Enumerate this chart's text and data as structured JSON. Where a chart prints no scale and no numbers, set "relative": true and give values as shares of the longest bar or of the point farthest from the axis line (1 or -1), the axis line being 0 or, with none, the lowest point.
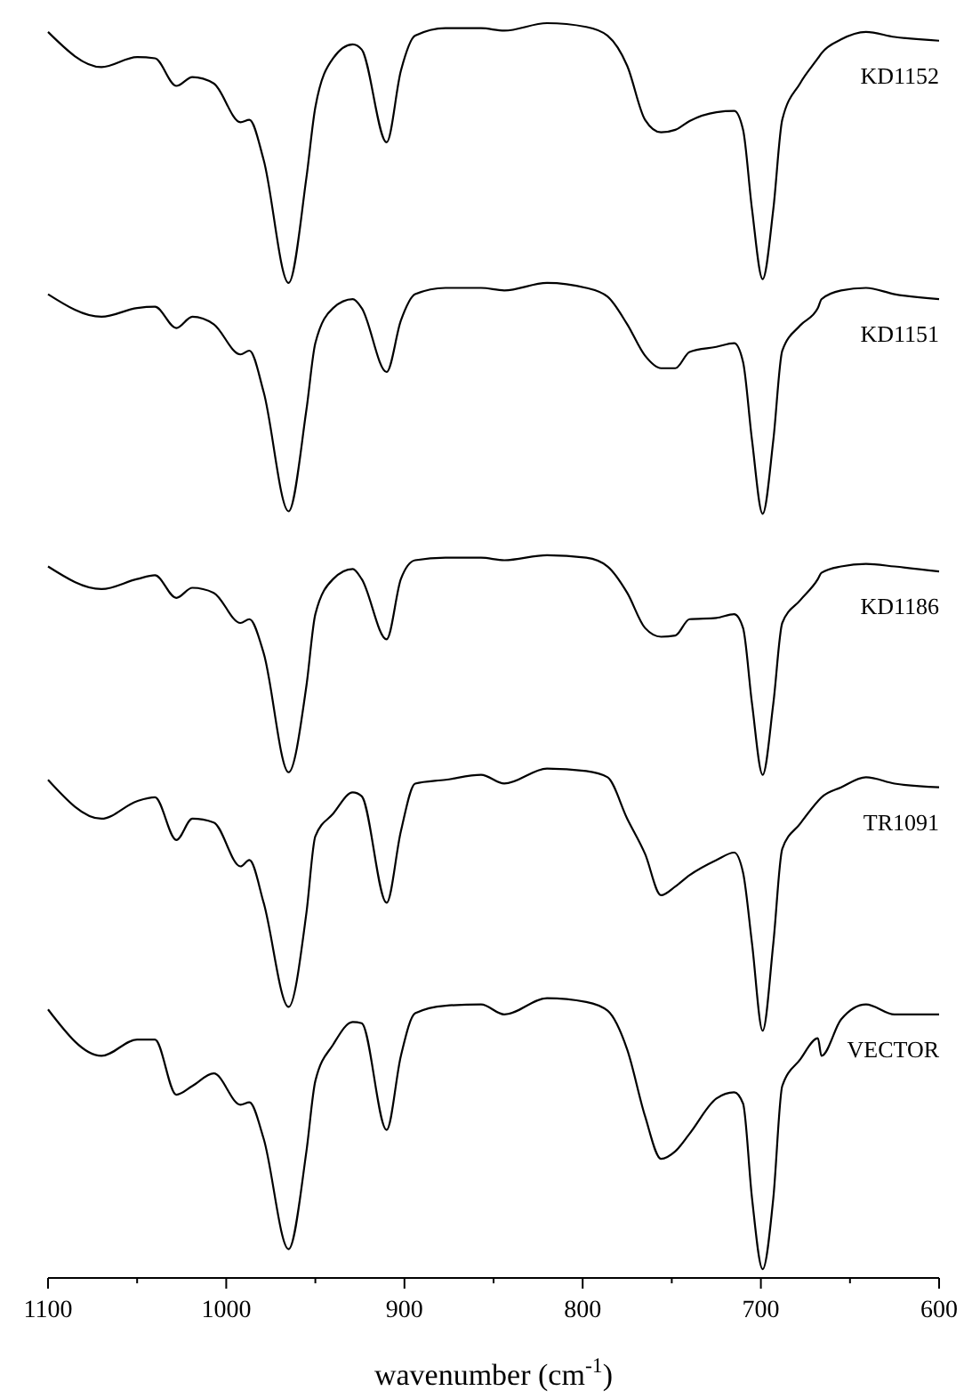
{
  "chart_data": {
    "type": "line",
    "relative": true,
    "xlabel": "wavenumber (cm$^{-1}$)",
    "xlim": [
      1100,
      600
    ],
    "xticks": [
      1100,
      {
        "value": 1050,
        "label": null
      },
      1000,
      {
        "value": 950,
        "label": null
      },
      900,
      {
        "value": 850,
        "label": null
      },
      800,
      {
        "value": 750,
        "label": null
      },
      700,
      {
        "value": 650,
        "label": null
      },
      600
    ],
    "x": [
      1100,
      1070,
      1050,
      1040,
      1028,
      1019,
      1007,
      992,
      987,
      979,
      965,
      955,
      950,
      940,
      929,
      924,
      910,
      902,
      894,
      877,
      857,
      844,
      820,
      798,
      786,
      775,
      765,
      756,
      748,
      740,
      725,
      715,
      710,
      705,
      699,
      693,
      688,
      678,
      668,
      666,
      655,
      641,
      625,
      600
    ],
    "series": [
      {
        "name": "KD1152",
        "color": "#000000",
        "values": [
          0.993,
          0.965,
          0.973,
          0.972,
          0.95,
          0.957,
          0.952,
          0.921,
          0.923,
          0.891,
          0.793,
          0.877,
          0.933,
          0.972,
          0.983,
          0.979,
          0.905,
          0.962,
          0.99,
          0.996,
          0.996,
          0.994,
          1.0,
          0.997,
          0.99,
          0.966,
          0.923,
          0.913,
          0.915,
          0.922,
          0.929,
          0.93,
          0.915,
          0.852,
          0.796,
          0.852,
          0.923,
          0.952,
          0.972,
          0.976,
          0.987,
          0.993,
          0.989,
          0.986
        ]
      },
      {
        "name": "KD1151",
        "color": "#000000",
        "values": [
          0.784,
          0.766,
          0.773,
          0.774,
          0.757,
          0.766,
          0.76,
          0.736,
          0.739,
          0.706,
          0.611,
          0.692,
          0.745,
          0.773,
          0.78,
          0.773,
          0.722,
          0.763,
          0.784,
          0.789,
          0.789,
          0.787,
          0.793,
          0.789,
          0.782,
          0.76,
          0.735,
          0.725,
          0.725,
          0.738,
          0.742,
          0.745,
          0.73,
          0.668,
          0.609,
          0.668,
          0.739,
          0.759,
          0.773,
          0.78,
          0.787,
          0.789,
          0.784,
          0.78
        ]
      },
      {
        "name": "KD1186",
        "color": "#000000",
        "values": [
          0.567,
          0.549,
          0.557,
          0.56,
          0.542,
          0.55,
          0.546,
          0.522,
          0.525,
          0.498,
          0.403,
          0.472,
          0.529,
          0.557,
          0.565,
          0.557,
          0.509,
          0.557,
          0.572,
          0.574,
          0.574,
          0.572,
          0.576,
          0.574,
          0.567,
          0.546,
          0.518,
          0.511,
          0.512,
          0.525,
          0.526,
          0.529,
          0.518,
          0.458,
          0.401,
          0.458,
          0.522,
          0.54,
          0.557,
          0.562,
          0.567,
          0.569,
          0.567,
          0.563
        ]
      },
      {
        "name": "TR1091",
        "color": "#000000",
        "values": [
          0.397,
          0.366,
          0.38,
          0.383,
          0.349,
          0.366,
          0.363,
          0.328,
          0.333,
          0.299,
          0.216,
          0.291,
          0.352,
          0.37,
          0.387,
          0.384,
          0.299,
          0.356,
          0.394,
          0.397,
          0.401,
          0.394,
          0.406,
          0.404,
          0.399,
          0.366,
          0.338,
          0.305,
          0.312,
          0.321,
          0.333,
          0.339,
          0.323,
          0.267,
          0.197,
          0.267,
          0.342,
          0.362,
          0.38,
          0.383,
          0.391,
          0.399,
          0.394,
          0.391
        ]
      },
      {
        "name": "VECTOR",
        "color": "#000000",
        "values": [
          0.214,
          0.177,
          0.19,
          0.19,
          0.146,
          0.153,
          0.163,
          0.138,
          0.14,
          0.111,
          0.023,
          0.101,
          0.157,
          0.186,
          0.204,
          0.203,
          0.118,
          0.177,
          0.211,
          0.217,
          0.218,
          0.21,
          0.223,
          0.22,
          0.213,
          0.182,
          0.129,
          0.095,
          0.101,
          0.115,
          0.143,
          0.148,
          0.139,
          0.064,
          0.007,
          0.064,
          0.153,
          0.174,
          0.191,
          0.177,
          0.206,
          0.218,
          0.21,
          0.21
        ]
      }
    ]
  }
}
